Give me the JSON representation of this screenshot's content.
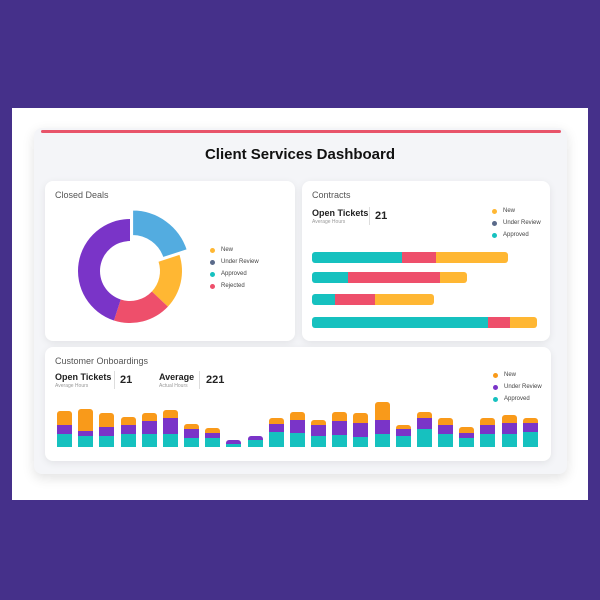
{
  "title": "Client Services Dashboard",
  "colors": {
    "new": "#ffb733",
    "orange": "#f99a1a",
    "under_review": "#7a34c8",
    "approved": "#16c1bf",
    "rejected": "#ee4f6b",
    "accent": "#e8546a",
    "highlight": "#4aa8df"
  },
  "closed_deals": {
    "title": "Closed Deals",
    "legend": [
      "New",
      "Under Review",
      "Approved",
      "Rejected"
    ],
    "slices": [
      {
        "label": "Approved",
        "value": 20,
        "color": "#4aa8df"
      },
      {
        "label": "New",
        "value": 17,
        "color": "#ffb733"
      },
      {
        "label": "Rejected",
        "value": 18,
        "color": "#ee4f6b"
      },
      {
        "label": "Under Review",
        "value": 45,
        "color": "#7a34c8"
      }
    ]
  },
  "contracts": {
    "title": "Contracts",
    "metric_label": "Open Tickets",
    "metric_sub": "Average Hours",
    "metric_value": "21",
    "legend": [
      "New",
      "Under Review",
      "Approved"
    ],
    "bars": [
      {
        "segments": [
          {
            "color": "#16c1bf",
            "value": 40
          },
          {
            "color": "#ee4f6b",
            "value": 15
          },
          {
            "color": "#ffb733",
            "value": 32
          }
        ]
      },
      {
        "segments": [
          {
            "color": "#16c1bf",
            "value": 16
          },
          {
            "color": "#ee4f6b",
            "value": 41
          },
          {
            "color": "#ffb733",
            "value": 12
          }
        ]
      },
      {
        "segments": [
          {
            "color": "#16c1bf",
            "value": 10
          },
          {
            "color": "#ee4f6b",
            "value": 18
          },
          {
            "color": "#ffb733",
            "value": 26
          }
        ]
      },
      {
        "segments": [
          {
            "color": "#16c1bf",
            "value": 78
          },
          {
            "color": "#ee4f6b",
            "value": 10
          },
          {
            "color": "#ffb733",
            "value": 12
          }
        ]
      }
    ]
  },
  "onboardings": {
    "title": "Customer Onboardings",
    "metric1_label": "Open Tickets",
    "metric1_sub": "Average Hours",
    "metric1_value": "21",
    "metric2_label": "Average",
    "metric2_sub": "Actual Hours",
    "metric2_value": "221",
    "legend": [
      "New",
      "Under Review",
      "Approved"
    ],
    "bars": [
      [
        13,
        8,
        12
      ],
      [
        20,
        5,
        10
      ],
      [
        13,
        8,
        10
      ],
      [
        7,
        8,
        12
      ],
      [
        7,
        12,
        12
      ],
      [
        8,
        14,
        12
      ],
      [
        5,
        8,
        8
      ],
      [
        4,
        5,
        8
      ],
      [
        0,
        3,
        3
      ],
      [
        0,
        4,
        6
      ],
      [
        5,
        7,
        14
      ],
      [
        7,
        12,
        13
      ],
      [
        5,
        10,
        10
      ],
      [
        8,
        13,
        11
      ],
      [
        9,
        13,
        9
      ],
      [
        16,
        13,
        12
      ],
      [
        4,
        6,
        10
      ],
      [
        6,
        10,
        16
      ],
      [
        6,
        8,
        12
      ],
      [
        5,
        5,
        8
      ],
      [
        6,
        8,
        12
      ],
      [
        7,
        10,
        12
      ],
      [
        4,
        8,
        14
      ]
    ]
  }
}
